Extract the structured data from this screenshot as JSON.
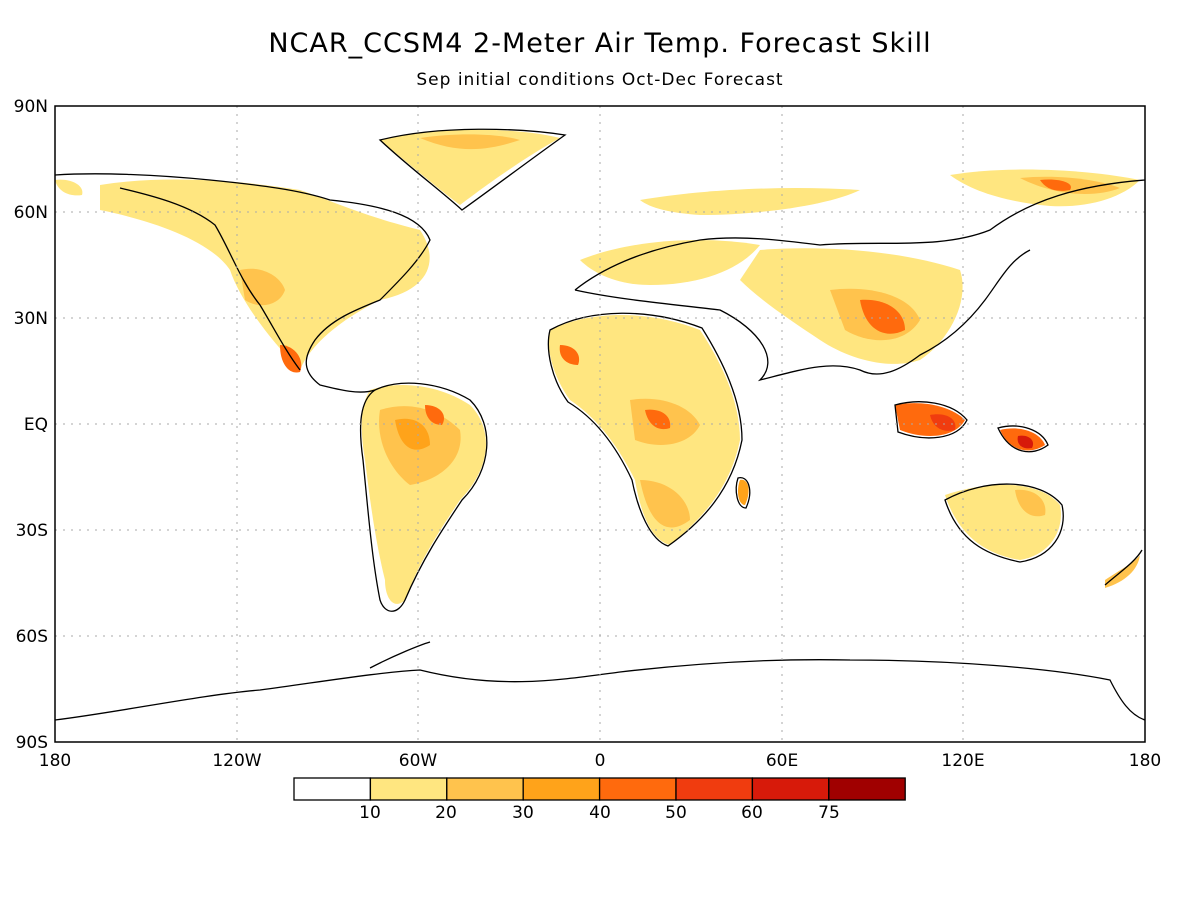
{
  "title": "NCAR_CCSM4 2-Meter Air Temp. Forecast Skill",
  "subtitle": "Sep initial conditions   Oct-Dec Forecast",
  "lat_labels": [
    "90N",
    "60N",
    "30N",
    "EQ",
    "30S",
    "60S",
    "90S"
  ],
  "lon_labels": [
    "180",
    "120W",
    "60W",
    "0",
    "60E",
    "120E",
    "180"
  ],
  "colorbar": {
    "labels": [
      "10",
      "20",
      "30",
      "40",
      "50",
      "60",
      "75"
    ],
    "colors": [
      "#ffffff",
      "#ffe680",
      "#ffc34d",
      "#ffa31a",
      "#ff6a0d",
      "#f03c0f",
      "#d71a0a",
      "#a00000"
    ]
  },
  "colors": {
    "grid": "#aaaaaa",
    "coast": "#000000"
  }
}
